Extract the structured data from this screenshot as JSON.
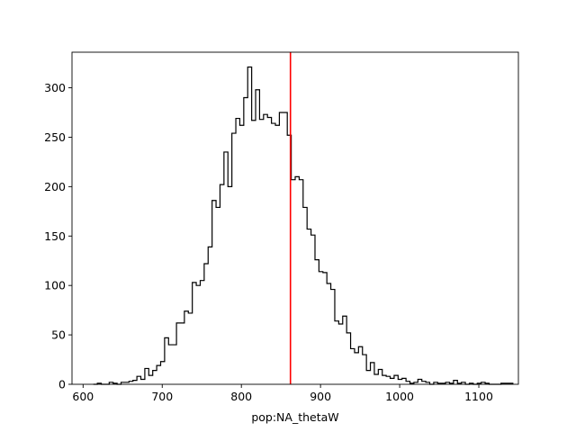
{
  "chart_data": {
    "type": "histogram",
    "title": "",
    "xlabel": "pop:NA_thetaW",
    "ylabel": "",
    "xlim": [
      586,
      1150
    ],
    "ylim": [
      0,
      336
    ],
    "xticks": [
      600,
      700,
      800,
      900,
      1000,
      1100
    ],
    "yticks": [
      0,
      50,
      100,
      150,
      200,
      250,
      300
    ],
    "grid": false,
    "bin_start": 613,
    "bin_width": 5,
    "counts": [
      0,
      1,
      0,
      0,
      2,
      1,
      0,
      2,
      2,
      3,
      4,
      8,
      5,
      16,
      9,
      14,
      19,
      23,
      47,
      40,
      40,
      62,
      62,
      74,
      72,
      103,
      100,
      105,
      122,
      139,
      186,
      179,
      202,
      235,
      200,
      254,
      269,
      262,
      290,
      321,
      267,
      298,
      268,
      273,
      270,
      264,
      262,
      275,
      275,
      252,
      207,
      210,
      207,
      179,
      157,
      151,
      126,
      114,
      113,
      102,
      96,
      64,
      61,
      69,
      52,
      36,
      32,
      38,
      30,
      14,
      22,
      10,
      15,
      9,
      8,
      6,
      9,
      5,
      6,
      3,
      1,
      2,
      5,
      3,
      2,
      0,
      2,
      1,
      1,
      2,
      1,
      4,
      1,
      2,
      0,
      1,
      0,
      1,
      2,
      1,
      0,
      0,
      0,
      1,
      1,
      1
    ],
    "vline": {
      "x": 862,
      "color": "#ff0000"
    },
    "colors": {
      "histogram": "#000000",
      "vline": "#ff0000",
      "axes": "#000000"
    }
  }
}
